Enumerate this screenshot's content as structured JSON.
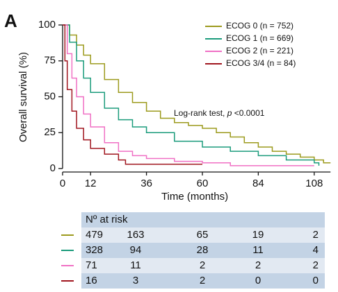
{
  "chart_data": {
    "type": "step",
    "panel_label": "A",
    "xlabel": "Time (months)",
    "ylabel": "Overall survival (%)",
    "xlim": [
      0,
      115
    ],
    "ylim": [
      0,
      100
    ],
    "xticks": [
      0,
      12,
      36,
      60,
      84,
      108
    ],
    "yticks": [
      0,
      25,
      50,
      75,
      100
    ],
    "legend": "upper right",
    "annotation": [
      "Log-rank test, ",
      "p",
      " <0.0001"
    ],
    "series": [
      {
        "name": "ECOG 0 (n = 752)",
        "color": "#9c9a1c",
        "x": [
          0,
          3,
          6,
          9,
          12,
          18,
          24,
          30,
          36,
          42,
          48,
          54,
          60,
          66,
          72,
          78,
          84,
          90,
          96,
          102,
          108,
          112,
          115
        ],
        "values": [
          100,
          93,
          86,
          79,
          73,
          62,
          53,
          46,
          40,
          35,
          32,
          30,
          28,
          25,
          22,
          18,
          15,
          12,
          10,
          8,
          6,
          4,
          4
        ]
      },
      {
        "name": "ECOG 1 (n = 669)",
        "color": "#1a9b7b",
        "x": [
          0,
          3,
          6,
          9,
          12,
          18,
          24,
          30,
          36,
          48,
          60,
          72,
          84,
          96,
          108,
          110
        ],
        "values": [
          100,
          88,
          75,
          63,
          53,
          42,
          34,
          29,
          25,
          19,
          15,
          12,
          9,
          6,
          4,
          2
        ]
      },
      {
        "name": "ECOG 2 (n = 221)",
        "color": "#f06fc4",
        "x": [
          0,
          2,
          4,
          6,
          9,
          12,
          18,
          24,
          30,
          36,
          48,
          60,
          72,
          108
        ],
        "values": [
          100,
          80,
          63,
          50,
          38,
          29,
          18,
          12,
          9,
          7,
          5,
          4,
          2,
          2
        ]
      },
      {
        "name": "ECOG 3/4 (n = 84)",
        "color": "#a0151e",
        "x": [
          0,
          1,
          2,
          4,
          6,
          9,
          12,
          18,
          24,
          27,
          60
        ],
        "values": [
          100,
          75,
          55,
          40,
          28,
          20,
          14,
          10,
          6,
          3,
          3
        ]
      }
    ],
    "risk_table": {
      "title": "Nº at risk",
      "rows": [
        [
          479,
          163,
          65,
          19,
          2
        ],
        [
          328,
          94,
          28,
          11,
          4
        ],
        [
          71,
          11,
          2,
          2,
          2
        ],
        [
          16,
          3,
          2,
          0,
          0
        ]
      ]
    }
  }
}
